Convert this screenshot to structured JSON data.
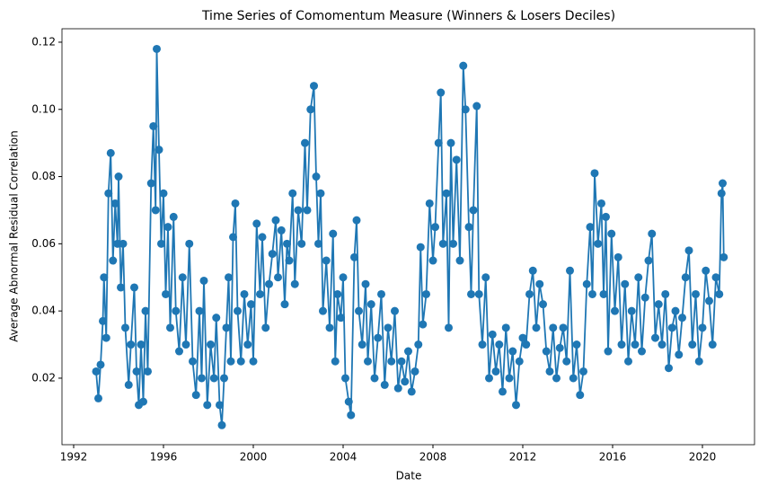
{
  "chart_data": {
    "type": "line",
    "title": "Time Series of Comomentum Measure (Winners & Losers Deciles)",
    "xlabel": "Date",
    "ylabel": "Average Abnormal Residual Correlation",
    "color": "#1f77b4",
    "x": [
      1993.0,
      1993.1,
      1993.2,
      1993.3,
      1993.35,
      1993.45,
      1993.55,
      1993.65,
      1993.75,
      1993.85,
      1993.95,
      1994.0,
      1994.1,
      1994.2,
      1994.3,
      1994.45,
      1994.55,
      1994.7,
      1994.8,
      1994.9,
      1995.0,
      1995.1,
      1995.2,
      1995.3,
      1995.45,
      1995.55,
      1995.65,
      1995.7,
      1995.8,
      1995.9,
      1996.0,
      1996.1,
      1996.2,
      1996.3,
      1996.45,
      1996.55,
      1996.7,
      1996.85,
      1997.0,
      1997.15,
      1997.3,
      1997.45,
      1997.6,
      1997.7,
      1997.8,
      1997.95,
      1998.1,
      1998.25,
      1998.35,
      1998.5,
      1998.6,
      1998.7,
      1998.8,
      1998.9,
      1999.0,
      1999.1,
      1999.2,
      1999.3,
      1999.45,
      1999.6,
      1999.75,
      1999.9,
      2000.0,
      2000.15,
      2000.3,
      2000.4,
      2000.55,
      2000.7,
      2000.85,
      2001.0,
      2001.1,
      2001.25,
      2001.4,
      2001.5,
      2001.6,
      2001.75,
      2001.85,
      2002.0,
      2002.15,
      2002.3,
      2002.4,
      2002.55,
      2002.7,
      2002.8,
      2002.9,
      2003.0,
      2003.1,
      2003.25,
      2003.4,
      2003.55,
      2003.65,
      2003.75,
      2003.9,
      2004.0,
      2004.1,
      2004.25,
      2004.35,
      2004.5,
      2004.6,
      2004.7,
      2004.85,
      2005.0,
      2005.1,
      2005.25,
      2005.4,
      2005.55,
      2005.7,
      2005.85,
      2006.0,
      2006.15,
      2006.3,
      2006.45,
      2006.6,
      2006.75,
      2006.9,
      2007.05,
      2007.2,
      2007.35,
      2007.45,
      2007.55,
      2007.7,
      2007.85,
      2008.0,
      2008.1,
      2008.25,
      2008.35,
      2008.45,
      2008.6,
      2008.7,
      2008.8,
      2008.9,
      2009.05,
      2009.2,
      2009.35,
      2009.45,
      2009.6,
      2009.7,
      2009.8,
      2009.95,
      2010.05,
      2010.2,
      2010.35,
      2010.5,
      2010.65,
      2010.8,
      2010.95,
      2011.1,
      2011.25,
      2011.4,
      2011.55,
      2011.7,
      2011.85,
      2012.0,
      2012.15,
      2012.3,
      2012.45,
      2012.6,
      2012.75,
      2012.9,
      2013.05,
      2013.2,
      2013.35,
      2013.5,
      2013.65,
      2013.8,
      2013.95,
      2014.1,
      2014.25,
      2014.4,
      2014.55,
      2014.7,
      2014.85,
      2015.0,
      2015.1,
      2015.2,
      2015.35,
      2015.5,
      2015.6,
      2015.7,
      2015.8,
      2015.95,
      2016.1,
      2016.25,
      2016.4,
      2016.55,
      2016.7,
      2016.85,
      2017.0,
      2017.15,
      2017.3,
      2017.45,
      2017.6,
      2017.75,
      2017.9,
      2018.05,
      2018.2,
      2018.35,
      2018.5,
      2018.65,
      2018.8,
      2018.95,
      2019.1,
      2019.25,
      2019.4,
      2019.55,
      2019.7,
      2019.85,
      2020.0,
      2020.15,
      2020.3,
      2020.45,
      2020.6,
      2020.75,
      2020.85,
      2020.9,
      2020.95
    ],
    "values": [
      0.022,
      0.014,
      0.024,
      0.037,
      0.05,
      0.032,
      0.075,
      0.087,
      0.055,
      0.072,
      0.06,
      0.08,
      0.047,
      0.06,
      0.035,
      0.018,
      0.03,
      0.047,
      0.022,
      0.012,
      0.03,
      0.013,
      0.04,
      0.022,
      0.078,
      0.095,
      0.07,
      0.118,
      0.088,
      0.06,
      0.075,
      0.045,
      0.065,
      0.035,
      0.068,
      0.04,
      0.028,
      0.05,
      0.03,
      0.06,
      0.025,
      0.015,
      0.04,
      0.02,
      0.049,
      0.012,
      0.03,
      0.02,
      0.038,
      0.012,
      0.006,
      0.02,
      0.035,
      0.05,
      0.025,
      0.062,
      0.072,
      0.04,
      0.025,
      0.045,
      0.03,
      0.042,
      0.025,
      0.066,
      0.045,
      0.062,
      0.035,
      0.048,
      0.057,
      0.067,
      0.05,
      0.064,
      0.042,
      0.06,
      0.055,
      0.075,
      0.048,
      0.07,
      0.06,
      0.09,
      0.07,
      0.1,
      0.107,
      0.08,
      0.06,
      0.075,
      0.04,
      0.055,
      0.035,
      0.063,
      0.025,
      0.045,
      0.038,
      0.05,
      0.02,
      0.013,
      0.009,
      0.056,
      0.067,
      0.04,
      0.03,
      0.048,
      0.025,
      0.042,
      0.02,
      0.032,
      0.045,
      0.018,
      0.035,
      0.025,
      0.04,
      0.017,
      0.025,
      0.019,
      0.028,
      0.016,
      0.022,
      0.03,
      0.059,
      0.036,
      0.045,
      0.072,
      0.055,
      0.065,
      0.09,
      0.105,
      0.06,
      0.075,
      0.035,
      0.09,
      0.06,
      0.085,
      0.055,
      0.113,
      0.1,
      0.065,
      0.045,
      0.07,
      0.101,
      0.045,
      0.03,
      0.05,
      0.02,
      0.033,
      0.022,
      0.03,
      0.016,
      0.035,
      0.02,
      0.028,
      0.012,
      0.025,
      0.032,
      0.03,
      0.045,
      0.052,
      0.035,
      0.048,
      0.042,
      0.028,
      0.022,
      0.035,
      0.02,
      0.029,
      0.035,
      0.025,
      0.052,
      0.02,
      0.03,
      0.015,
      0.022,
      0.048,
      0.065,
      0.045,
      0.081,
      0.06,
      0.072,
      0.045,
      0.068,
      0.028,
      0.063,
      0.04,
      0.056,
      0.03,
      0.048,
      0.025,
      0.04,
      0.03,
      0.05,
      0.028,
      0.044,
      0.055,
      0.063,
      0.032,
      0.042,
      0.03,
      0.045,
      0.023,
      0.035,
      0.04,
      0.027,
      0.038,
      0.05,
      0.058,
      0.03,
      0.045,
      0.025,
      0.035,
      0.052,
      0.043,
      0.03,
      0.05,
      0.045,
      0.075,
      0.078,
      0.056
    ],
    "xlim": [
      1991.48,
      2022.32
    ],
    "xticks": [
      1992,
      1996,
      2000,
      2004,
      2008,
      2012,
      2016,
      2020
    ],
    "ylim": [
      0.0002,
      0.124
    ],
    "yticks": [
      0.02,
      0.04,
      0.06,
      0.08,
      {
        "value": 0.1,
        "label": "0.10"
      },
      0.12
    ]
  }
}
